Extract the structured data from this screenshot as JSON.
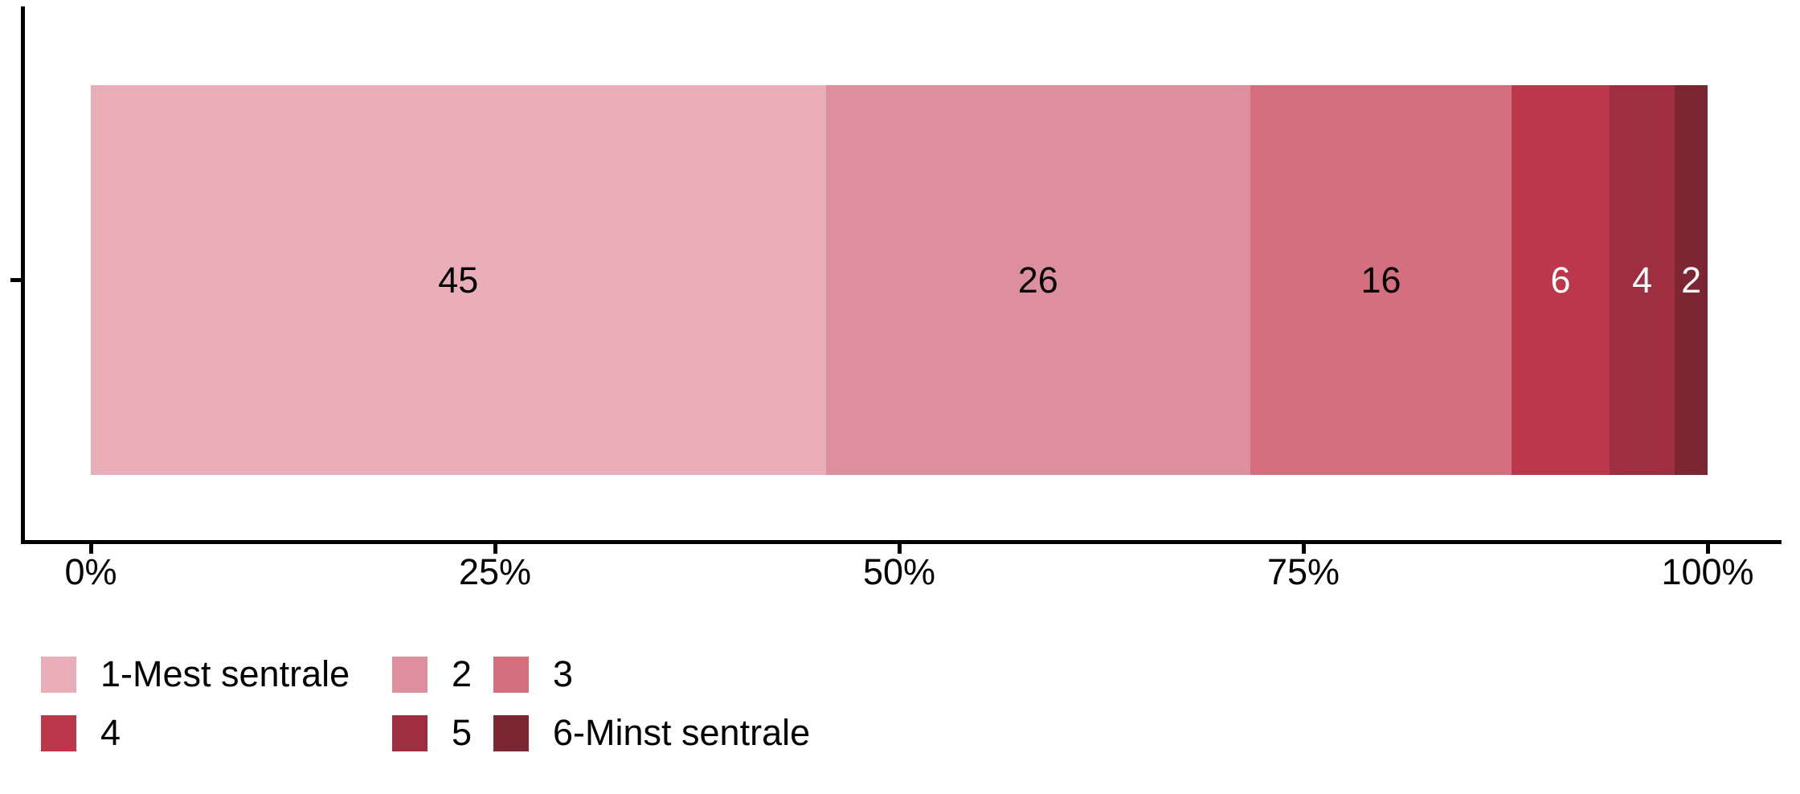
{
  "chart_data": {
    "type": "bar",
    "subtype": "stacked-horizontal-percent",
    "orientation": "horizontal",
    "title": "",
    "xlabel": "",
    "ylabel": "",
    "categories": [
      ""
    ],
    "series": [
      {
        "name": "1-Mest sentrale",
        "values": [
          45
        ],
        "bar_label": "45",
        "color": "#EAAEB8",
        "label_color": "#000000"
      },
      {
        "name": "2",
        "values": [
          26
        ],
        "bar_label": "26",
        "color": "#DE8F9D",
        "label_color": "#000000"
      },
      {
        "name": "3",
        "values": [
          16
        ],
        "bar_label": "16",
        "color": "#D36F7F",
        "label_color": "#000000"
      },
      {
        "name": "4",
        "values": [
          6
        ],
        "bar_label": "6",
        "color": "#BC3749",
        "label_color": "#FFFFFF"
      },
      {
        "name": "5",
        "values": [
          4
        ],
        "bar_label": "4",
        "color": "#9E2E40",
        "label_color": "#FFFFFF"
      },
      {
        "name": "6-Minst sentrale",
        "values": [
          2
        ],
        "bar_label": "2",
        "color": "#7C2533",
        "label_color": "#FFFFFF"
      }
    ],
    "x_axis": {
      "tick_labels": [
        "0%",
        "25%",
        "50%",
        "75%",
        "100%"
      ],
      "tick_values": [
        0,
        25,
        50,
        75,
        100
      ],
      "range": [
        0,
        100
      ],
      "grid": false
    },
    "axis_color": "#000000",
    "legend": {
      "position": "bottom-left",
      "rows": 2,
      "columns": 3,
      "entries": [
        "1-Mest sentrale",
        "2",
        "3",
        "4",
        "5",
        "6-Minst sentrale"
      ]
    }
  }
}
